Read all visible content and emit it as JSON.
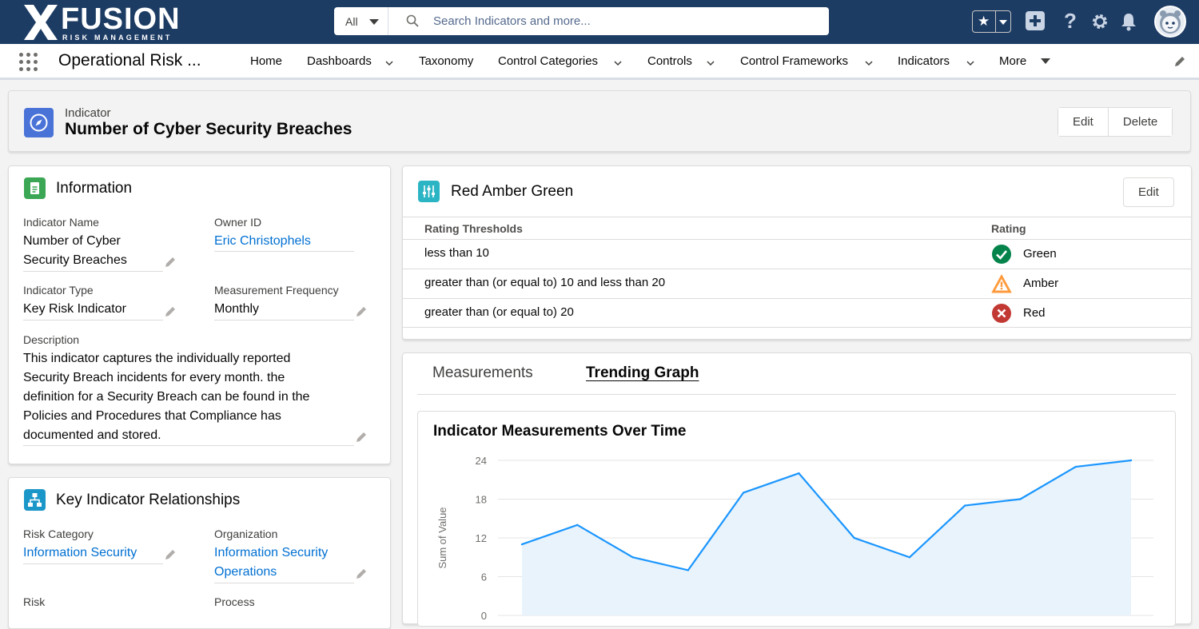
{
  "global_header": {
    "brand": "FUSION",
    "brand_sub": "RISK MANAGEMENT",
    "search_scope": "All",
    "search_placeholder": "Search Indicators and more..."
  },
  "app_nav": {
    "app_name": "Operational Risk ...",
    "items": [
      {
        "label": "Home",
        "dropdown": false
      },
      {
        "label": "Dashboards",
        "dropdown": true
      },
      {
        "label": "Taxonomy",
        "dropdown": false
      },
      {
        "label": "Control Categories",
        "dropdown": true
      },
      {
        "label": "Controls",
        "dropdown": true
      },
      {
        "label": "Control Frameworks",
        "dropdown": true
      },
      {
        "label": "Indicators",
        "dropdown": true
      },
      {
        "label": "More",
        "dropdown": true
      }
    ]
  },
  "record": {
    "type": "Indicator",
    "title": "Number of Cyber Security Breaches",
    "edit_label": "Edit",
    "delete_label": "Delete"
  },
  "information": {
    "title": "Information",
    "indicator_name_label": "Indicator Name",
    "indicator_name_line1": "Number of Cyber",
    "indicator_name_line2": "Security Breaches",
    "owner_label": "Owner ID",
    "owner_value": "Eric Christophels",
    "type_label": "Indicator Type",
    "type_value": "Key Risk Indicator",
    "frequency_label": "Measurement Frequency",
    "frequency_value": "Monthly",
    "description_label": "Description",
    "description_lines": [
      "This indicator captures the individually reported",
      "Security Breach incidents for every month. the",
      "definition for a Security Breach can be found in the",
      "Policies and Procedures that Compliance has",
      "documented and stored."
    ]
  },
  "relationships": {
    "title": "Key Indicator Relationships",
    "risk_category_label": "Risk Category",
    "risk_category_value": "Information Security",
    "organization_label": "Organization",
    "organization_line1": "Information Security",
    "organization_line2": "Operations",
    "risk_label": "Risk",
    "process_label": "Process"
  },
  "rag": {
    "title": "Red Amber Green",
    "edit_label": "Edit",
    "col_thresholds": "Rating Thresholds",
    "col_rating": "Rating",
    "rows": [
      {
        "threshold": "less than 10",
        "rating": "Green",
        "icon": "check-circle-icon"
      },
      {
        "threshold": "greater than (or equal to) 10 and less than 20",
        "rating": "Amber",
        "icon": "warning-icon"
      },
      {
        "threshold": "greater than (or equal to) 20",
        "rating": "Red",
        "icon": "error-circle-icon"
      }
    ]
  },
  "tabs": [
    {
      "label": "Measurements",
      "active": false
    },
    {
      "label": "Trending Graph",
      "active": true
    }
  ],
  "colors": {
    "header_bg": "#1d3c64",
    "link": "#0070d2",
    "green": "#04844b",
    "amber": "#ff9a3c",
    "red": "#c23934",
    "series_line": "#1b96ff",
    "series_fill": "#e8f3fc"
  },
  "chart_data": {
    "type": "area",
    "title": "Indicator Measurements Over Time",
    "ylabel": "Sum of Value",
    "xlabel": "",
    "ylim": [
      0,
      24
    ],
    "yticks": [
      0,
      6,
      12,
      18,
      24
    ],
    "grid": true,
    "values": [
      11,
      14,
      9,
      7,
      19,
      22,
      12,
      9,
      17,
      18,
      23,
      24
    ]
  }
}
